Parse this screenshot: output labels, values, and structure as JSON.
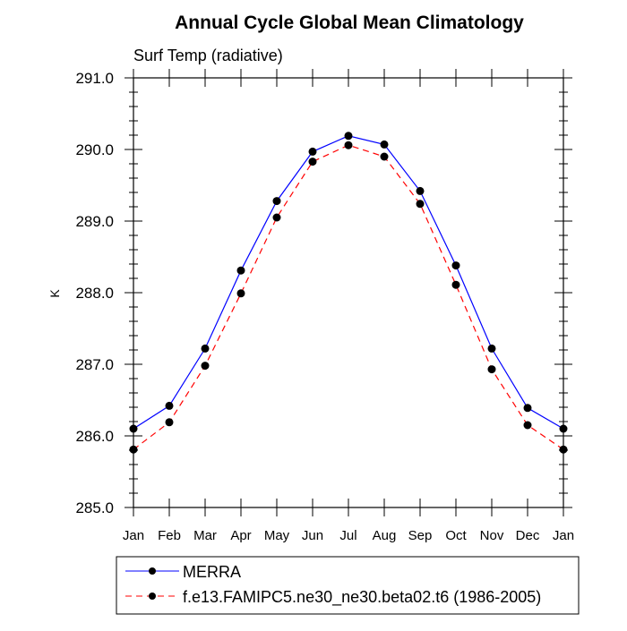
{
  "chart_data": {
    "type": "line",
    "title": "Annual Cycle Global Mean Climatology",
    "subtitle": "Surf Temp (radiative)",
    "ylabel": "K",
    "xlabel": "",
    "categories": [
      "Jan",
      "Feb",
      "Mar",
      "Apr",
      "May",
      "Jun",
      "Jul",
      "Aug",
      "Sep",
      "Oct",
      "Nov",
      "Dec",
      "Jan"
    ],
    "ylim": [
      285.0,
      291.0
    ],
    "yticks": [
      "285.0",
      "286.0",
      "287.0",
      "288.0",
      "289.0",
      "290.0",
      "291.0"
    ],
    "grid": false,
    "legend_placement": "bottom",
    "series": [
      {
        "name": "MERRA",
        "color": "#0000ff",
        "dash": "solid",
        "values": [
          286.1,
          286.42,
          287.22,
          288.31,
          289.28,
          289.97,
          290.19,
          290.07,
          289.42,
          288.38,
          287.22,
          286.39,
          286.1
        ]
      },
      {
        "name": "f.e13.FAMIPC5.ne30_ne30.beta02.t6 (1986-2005)",
        "color": "#ff0000",
        "dash": "dashed",
        "values": [
          285.81,
          286.19,
          286.98,
          287.99,
          289.05,
          289.83,
          290.06,
          289.9,
          289.24,
          288.11,
          286.93,
          286.15,
          285.81
        ]
      }
    ]
  }
}
